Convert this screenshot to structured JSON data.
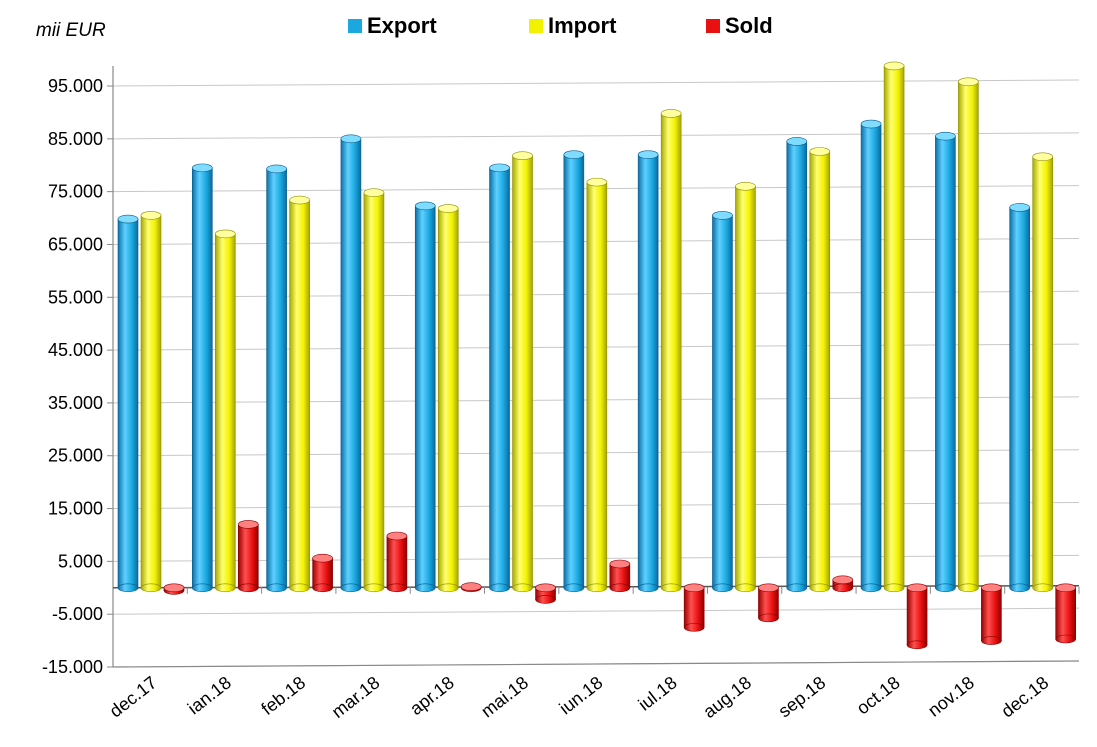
{
  "chart_data": {
    "type": "bar",
    "unit_label": "mii EUR",
    "categories": [
      "dec.17",
      "ian.18",
      "feb.18",
      "mar.18",
      "apr.18",
      "mai.18",
      "iun.18",
      "iul.18",
      "aug.18",
      "sep.18",
      "oct.18",
      "nov.18",
      "dec.18"
    ],
    "series": [
      {
        "name": "Export",
        "color": "#1ba8e0",
        "values": [
          69800,
          79500,
          79300,
          85000,
          72300,
          79500,
          82000,
          82000,
          70500,
          84500,
          87800,
          85500,
          72000
        ]
      },
      {
        "name": "Import",
        "color": "#f2f200",
        "values": [
          70500,
          67000,
          73400,
          74800,
          71800,
          81800,
          76800,
          89800,
          76000,
          82600,
          98800,
          95800,
          81600
        ]
      },
      {
        "name": "Sold",
        "color": "#e81010",
        "values": [
          -500,
          12000,
          5600,
          9800,
          200,
          -2200,
          4500,
          -7500,
          -5700,
          1500,
          -10800,
          -10000,
          -9700
        ]
      }
    ],
    "yticks": [
      "95.000",
      "85.000",
      "75.000",
      "65.000",
      "55.000",
      "45.000",
      "35.000",
      "25.000",
      "15.000",
      "5.000",
      "-5.000",
      "-15.000"
    ],
    "ytick_values": [
      95000,
      85000,
      75000,
      65000,
      55000,
      45000,
      35000,
      25000,
      15000,
      5000,
      -5000,
      -15000
    ],
    "ylim": [
      -15000,
      95000
    ],
    "legend_position": "top-center",
    "grid": true
  }
}
